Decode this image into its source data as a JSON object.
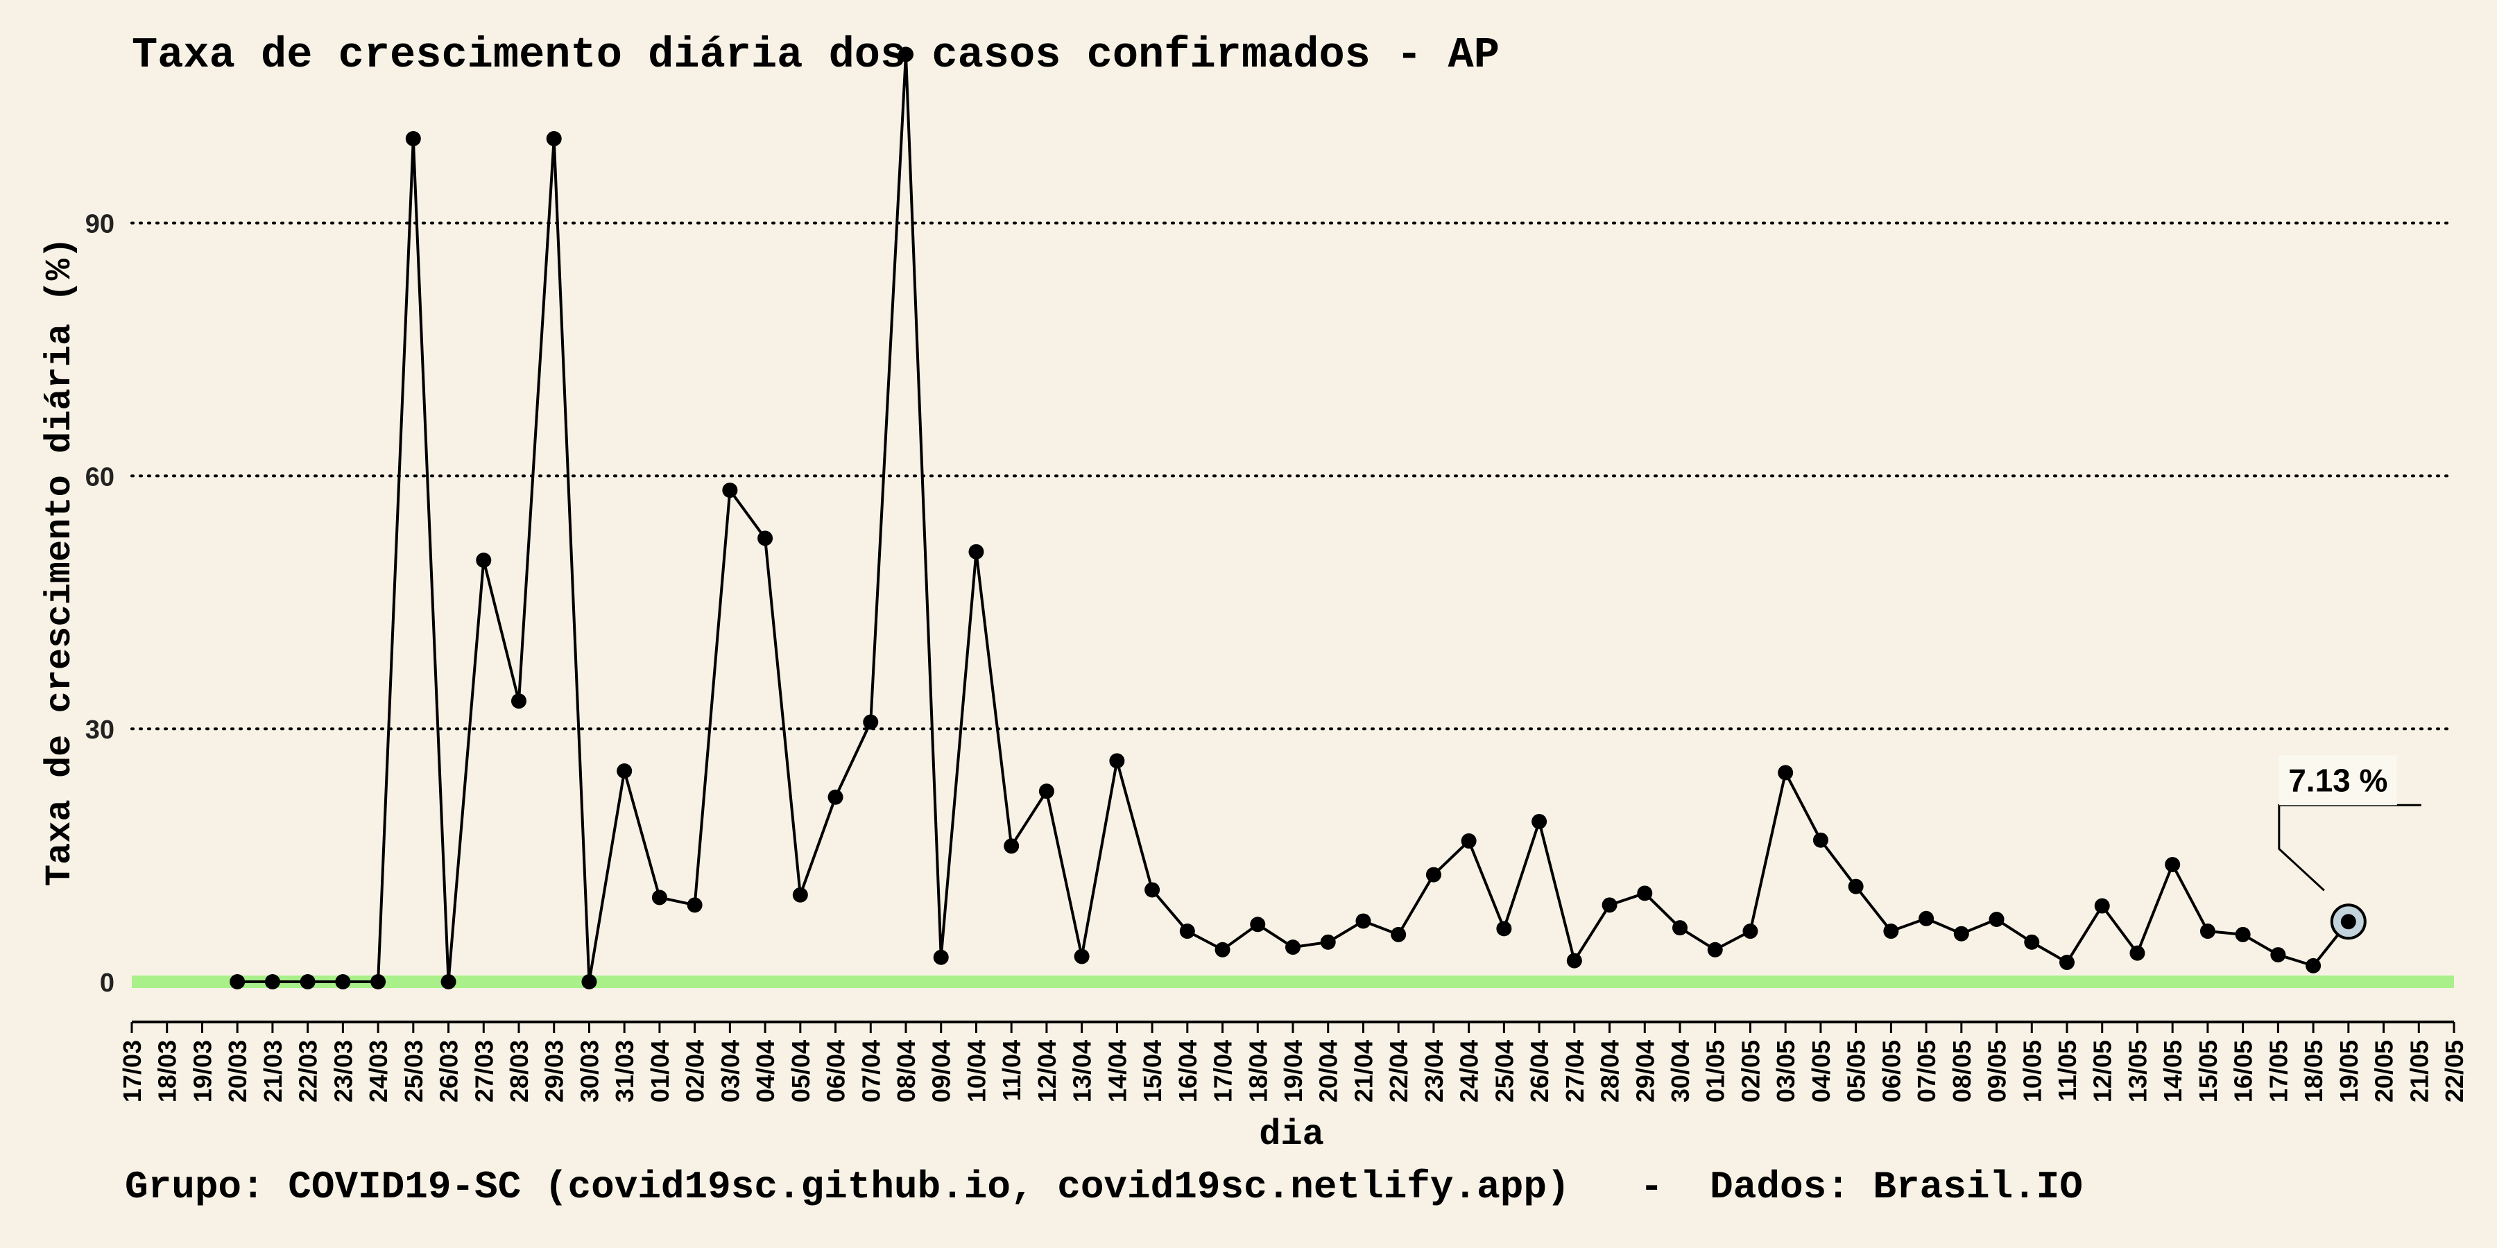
{
  "chart_data": {
    "type": "line",
    "title": "Taxa de crescimento diária dos casos confirmados - AP",
    "xlabel": "dia",
    "ylabel": "Taxa de crescimento diária (%)",
    "footer": "Grupo: COVID19-SC (covid19sc.github.io, covid19sc.netlify.app)   -  Dados: Brasil.IO",
    "ylim": [
      -5,
      115
    ],
    "yticks": [
      0,
      30,
      60,
      90
    ],
    "grid": "horizontal-dotted",
    "legend": "none",
    "categories": [
      "17/03",
      "18/03",
      "19/03",
      "20/03",
      "21/03",
      "22/03",
      "23/03",
      "24/03",
      "25/03",
      "26/03",
      "27/03",
      "28/03",
      "29/03",
      "30/03",
      "31/03",
      "01/04",
      "02/04",
      "03/04",
      "04/04",
      "05/04",
      "06/04",
      "07/04",
      "08/04",
      "09/04",
      "10/04",
      "11/04",
      "12/04",
      "13/04",
      "14/04",
      "15/04",
      "16/04",
      "17/04",
      "18/04",
      "19/04",
      "20/04",
      "21/04",
      "22/04",
      "23/04",
      "24/04",
      "25/04",
      "26/04",
      "27/04",
      "28/04",
      "29/04",
      "30/04",
      "01/05",
      "02/05",
      "03/05",
      "04/05",
      "05/05",
      "06/05",
      "07/05",
      "08/05",
      "09/05",
      "10/05",
      "11/05",
      "12/05",
      "13/05",
      "14/05",
      "15/05",
      "16/05",
      "17/05",
      "18/05",
      "19/05",
      "20/05",
      "21/05",
      "22/05"
    ],
    "series": [
      {
        "values": [
          null,
          null,
          null,
          0,
          0,
          0,
          0,
          0,
          100,
          0,
          50,
          33.3,
          100,
          0,
          25,
          10,
          9.1,
          58.3,
          52.6,
          10.3,
          21.9,
          30.8,
          110,
          2.9,
          51,
          16.1,
          22.6,
          3,
          26.2,
          10.9,
          6,
          3.8,
          6.8,
          4.1,
          4.7,
          7.2,
          5.6,
          12.7,
          16.7,
          6.3,
          19,
          2.5,
          9.1,
          10.5,
          6.4,
          3.8,
          6,
          24.8,
          16.8,
          11.3,
          6,
          7.5,
          5.7,
          7.4,
          4.7,
          2.3,
          9,
          3.4,
          13.9,
          6,
          5.6,
          3.2,
          1.9,
          7.13,
          null,
          null,
          null
        ]
      }
    ],
    "highlight": {
      "category": "19/05",
      "value": 7.13,
      "label": "7.13 %"
    },
    "colors": {
      "background": "#f7f2e5",
      "line": "#000000",
      "zero_band": "#a9ef8a",
      "highlight_fill": "#c3d3dc"
    }
  }
}
